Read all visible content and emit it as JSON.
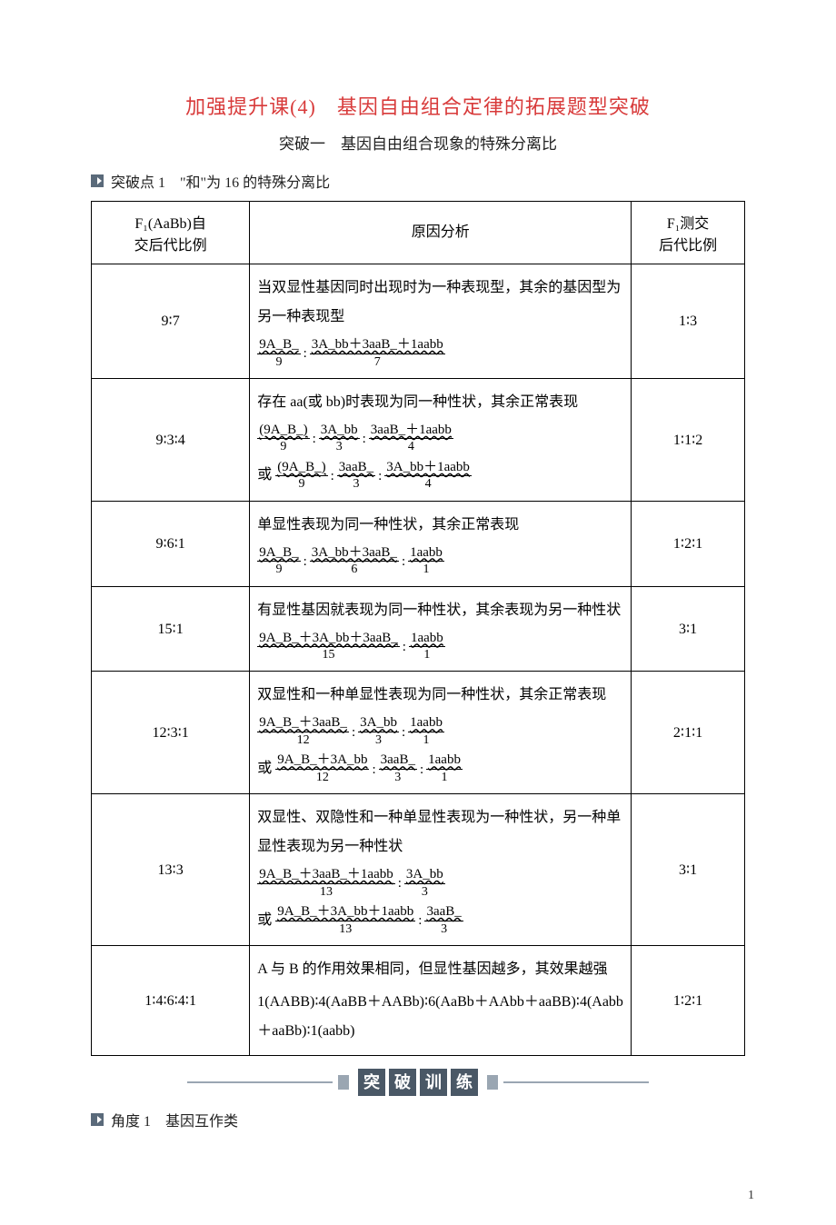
{
  "title": "加强提升课(4)　基因自由组合定律的拓展题型突破",
  "subtitle": "突破一　基因自由组合现象的特殊分离比",
  "point1": "突破点 1　\"和\"为 16 的特殊分离比",
  "table": {
    "headers": {
      "h1a": "F₁(AaBb)自",
      "h1b": "交后代比例",
      "h2": "原因分析",
      "h3a": "F₁测交",
      "h3b": "后代比例"
    },
    "rows": [
      {
        "ratio": "9∶7",
        "desc": "当双显性基因同时出现时为一种表现型，其余的基因型为另一种表现型",
        "frac_groups": [
          {
            "groups": [
              {
                "t": "9A_B_",
                "b": "9"
              },
              ":",
              {
                "t": "3A_bb＋3aaB_＋1aabb",
                "b": "7"
              }
            ]
          }
        ],
        "tc": "1∶3"
      },
      {
        "ratio": "9∶3∶4",
        "desc": "存在 aa(或 bb)时表现为同一种性状，其余正常表现",
        "frac_groups": [
          {
            "groups": [
              {
                "t": "(9A_B_)",
                "b": "9"
              },
              ":",
              {
                "t": "3A_bb",
                "b": "3"
              },
              ":",
              {
                "t": "3aaB_＋1aabb",
                "b": "4"
              }
            ]
          },
          {
            "prefix": "或",
            "groups": [
              {
                "t": "(9A_B_)",
                "b": "9"
              },
              ":",
              {
                "t": "3aaB_",
                "b": "3"
              },
              ":",
              {
                "t": "3A_bb＋1aabb",
                "b": "4"
              }
            ]
          }
        ],
        "tc": "1∶1∶2"
      },
      {
        "ratio": "9∶6∶1",
        "desc": "单显性表现为同一种性状，其余正常表现",
        "frac_groups": [
          {
            "groups": [
              {
                "t": "9A_B_",
                "b": "9"
              },
              ":",
              {
                "t": "3A_bb＋3aaB_",
                "b": "6"
              },
              ":",
              {
                "t": "1aabb",
                "b": "1"
              }
            ]
          }
        ],
        "tc": "1∶2∶1"
      },
      {
        "ratio": "15∶1",
        "desc": "有显性基因就表现为同一种性状，其余表现为另一种性状",
        "frac_groups": [
          {
            "groups": [
              {
                "t": "9A_B_＋3A_bb＋3aaB_",
                "b": "15"
              },
              ":",
              {
                "t": "1aabb",
                "b": "1"
              }
            ]
          }
        ],
        "tc": "3∶1"
      },
      {
        "ratio": "12∶3∶1",
        "desc": "双显性和一种单显性表现为同一种性状，其余正常表现",
        "frac_groups": [
          {
            "groups": [
              {
                "t": "9A_B_＋3aaB_",
                "b": "12"
              },
              ":",
              {
                "t": "3A_bb",
                "b": "3"
              },
              ":",
              {
                "t": "1aabb",
                "b": "1"
              }
            ]
          },
          {
            "prefix": "或",
            "groups": [
              {
                "t": "9A_B_＋3A_bb",
                "b": "12"
              },
              ":",
              {
                "t": "3aaB_",
                "b": "3"
              },
              ":",
              {
                "t": "1aabb",
                "b": "1"
              }
            ]
          }
        ],
        "tc": "2∶1∶1"
      },
      {
        "ratio": "13∶3",
        "desc": "双显性、双隐性和一种单显性表现为一种性状，另一种单显性表现为另一种性状",
        "frac_groups": [
          {
            "groups": [
              {
                "t": "9A_B_＋3aaB_＋1aabb",
                "b": "13"
              },
              ":",
              {
                "t": "3A_bb",
                "b": "3"
              }
            ]
          },
          {
            "prefix": "或",
            "groups": [
              {
                "t": "9A_B_＋3A_bb＋1aabb",
                "b": "13"
              },
              ":",
              {
                "t": "3aaB_",
                "b": "3"
              }
            ]
          }
        ],
        "tc": "3∶1"
      },
      {
        "ratio": "1∶4∶6∶4∶1",
        "desc": "A 与 B 的作用效果相同，但显性基因越多，其效果越强",
        "plain": "1(AABB)∶4(AaBB＋AABb)∶6(AaBb＋AAbb＋aaBB)∶4(Aabb＋aaBb)∶1(aabb)",
        "tc": "1∶2∶1"
      }
    ]
  },
  "banner": [
    "突",
    "破",
    "训",
    "练"
  ],
  "angle1": "角度 1　基因互作类",
  "page_num": "1"
}
